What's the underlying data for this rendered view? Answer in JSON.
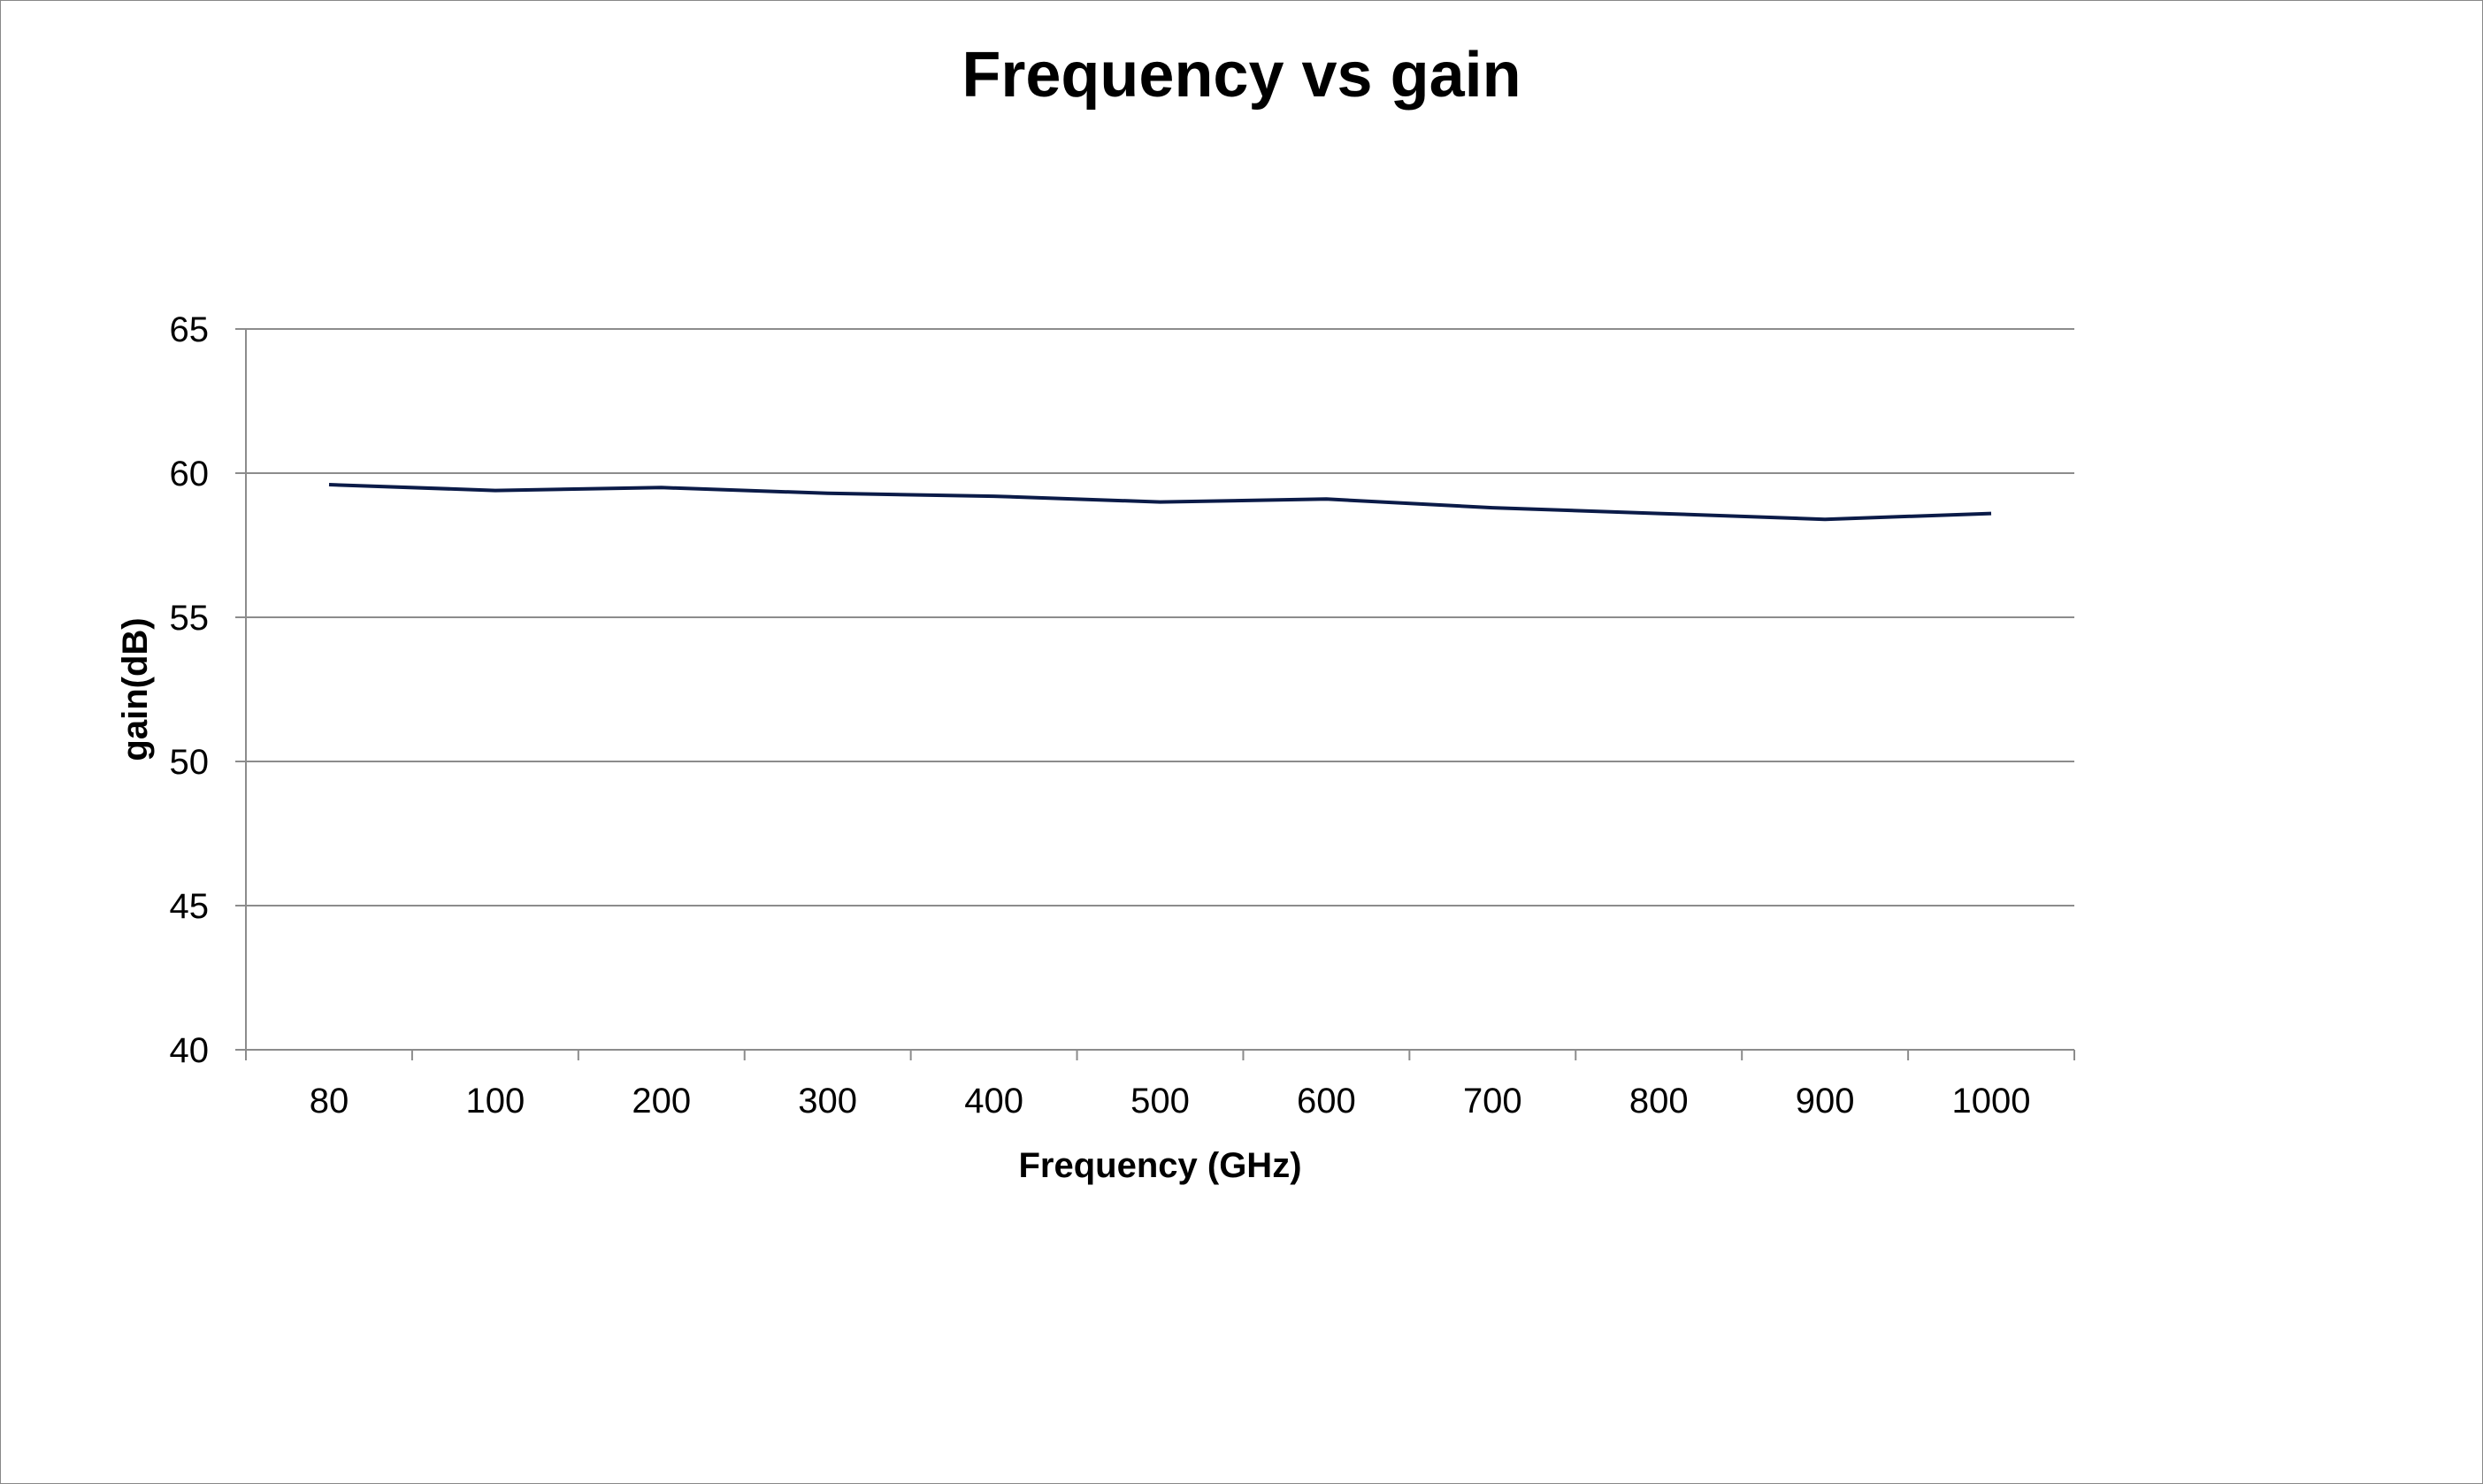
{
  "chart_data": {
    "type": "line",
    "title": "Frequency vs gain",
    "xlabel": "Frequency (GHz)",
    "ylabel": "gain(dB)",
    "categories": [
      "80",
      "100",
      "200",
      "300",
      "400",
      "500",
      "600",
      "700",
      "800",
      "900",
      "1000"
    ],
    "series": [
      {
        "values": [
          59.6,
          59.4,
          59.5,
          59.3,
          59.2,
          59.0,
          59.1,
          58.8,
          58.6,
          58.4,
          58.6
        ],
        "color": "#0b1b48"
      }
    ],
    "ylim": [
      40,
      65
    ],
    "yticks": [
      40,
      45,
      50,
      55,
      60,
      65
    ],
    "grid": "horizontal",
    "legend": "none"
  }
}
